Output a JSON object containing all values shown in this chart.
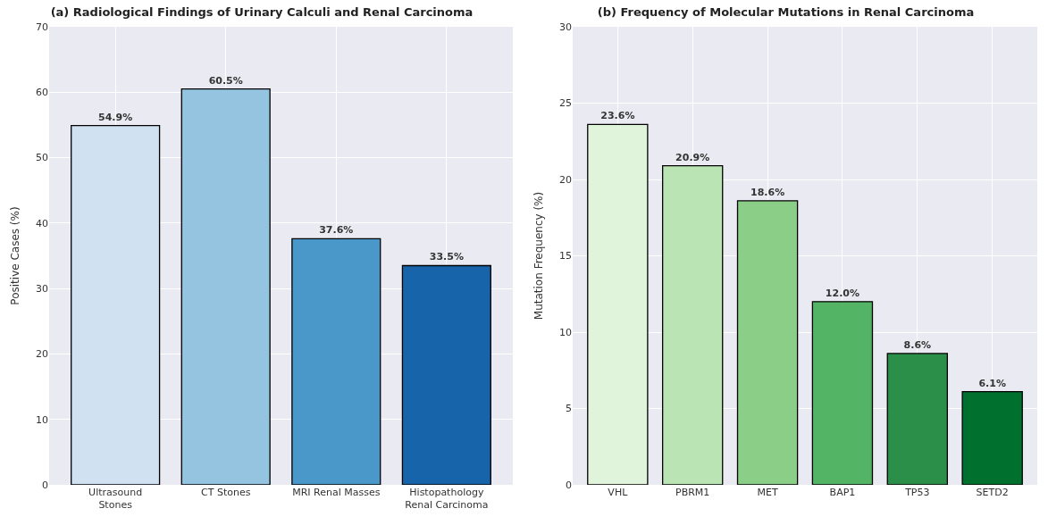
{
  "chart_data": [
    {
      "type": "bar",
      "title": "(a) Radiological Findings of Urinary Calculi and Renal Carcinoma",
      "ylabel": "Positive Cases (%)",
      "categories": [
        "Ultrasound Stones",
        "CT Stones",
        "MRI Renal Masses",
        "Histopathology Renal Carcinoma"
      ],
      "values": [
        54.9,
        60.5,
        37.6,
        33.5
      ],
      "colors": [
        "#d0e1f2",
        "#94c4df",
        "#4a98c9",
        "#1764ab"
      ],
      "value_labels": [
        "54.9%",
        "60.5%",
        "37.6%",
        "33.5%"
      ],
      "ylim": [
        0,
        70
      ],
      "yticks": [
        0,
        10,
        20,
        30,
        40,
        50,
        60,
        70
      ],
      "grid": true
    },
    {
      "type": "bar",
      "title": "(b) Frequency of Molecular Mutations in Renal Carcinoma",
      "ylabel": "Mutation Frequency (%)",
      "categories": [
        "VHL",
        "PBRM1",
        "MET",
        "BAP1",
        "TP53",
        "SETD2"
      ],
      "values": [
        23.6,
        20.9,
        18.6,
        12.0,
        8.6,
        6.1
      ],
      "colors": [
        "#e0f3db",
        "#bbe4b5",
        "#8ace88",
        "#53b466",
        "#2b8f4a",
        "#00702f"
      ],
      "value_labels": [
        "23.6%",
        "20.9%",
        "18.6%",
        "12.0%",
        "8.6%",
        "6.1%"
      ],
      "ylim": [
        0,
        30
      ],
      "yticks": [
        0,
        5,
        10,
        15,
        20,
        25,
        30
      ],
      "grid": true
    }
  ]
}
